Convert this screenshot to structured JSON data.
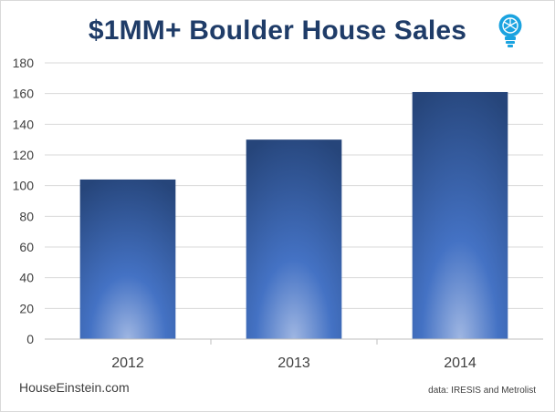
{
  "chart_data": {
    "type": "bar",
    "title": "$1MM+ Boulder House Sales",
    "categories": [
      "2012",
      "2013",
      "2014"
    ],
    "values": [
      104,
      130,
      161
    ],
    "ylim": [
      0,
      180
    ],
    "yticks": [
      "0",
      "20",
      "40",
      "60",
      "80",
      "100",
      "120",
      "140",
      "160",
      "180"
    ],
    "grid": true,
    "legend": "none",
    "colors": {
      "bar_top": "#26457a",
      "bar_mid": "#4472c4",
      "bar_glow": "#9fb6e2",
      "grid": "#d9d9d9",
      "title": "#1f3c68",
      "logo": "#1ba3e0"
    }
  },
  "branding": {
    "site": "HouseEinstein.com",
    "source": "data: IRESIS and Metrolist",
    "logo_icon": "lightbulb-icon"
  }
}
